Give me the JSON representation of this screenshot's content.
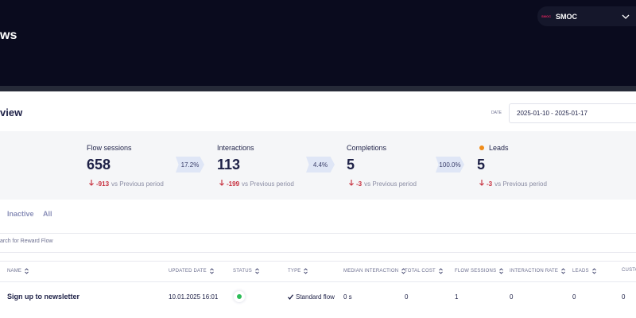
{
  "header": {
    "title": "ws",
    "account": {
      "logo": "SMOC",
      "name": "SMOC"
    }
  },
  "overview": {
    "title": "view",
    "date_label": "DATE",
    "date_range": "2025-01-10 - 2025-01-17"
  },
  "stats": [
    {
      "label": "Flow sessions",
      "value": "658",
      "change": "17.2%",
      "delta": "-913",
      "delta_suffix": "vs Previous period"
    },
    {
      "label": "Interactions",
      "value": "113",
      "change": "4.4%",
      "delta": "-199",
      "delta_suffix": "vs Previous period"
    },
    {
      "label": "Completions",
      "value": "5",
      "change": "100.0%",
      "delta": "-3",
      "delta_suffix": "vs Previous period"
    },
    {
      "label": "Leads",
      "value": "5",
      "delta": "-3",
      "delta_suffix": "vs Previous period"
    }
  ],
  "tabs": [
    "Inactive",
    "All"
  ],
  "search": {
    "placeholder": "arch for Reward Flow"
  },
  "table": {
    "columns": [
      "NAME",
      "UPDATED DATE",
      "STATUS",
      "TYPE",
      "MEDIAN INTERACTION",
      "TOTAL COST",
      "FLOW SESSIONS",
      "INTERACTION RATE",
      "LEADS",
      "CUSTO"
    ],
    "rows": [
      {
        "name": "Sign up to newsletter",
        "updated_date": "10.01.2025 16:01",
        "type": "Standard flow",
        "median_interaction": "0 s",
        "total_cost": "0",
        "flow_sessions": "1",
        "interaction_rate": "0",
        "leads": "0",
        "custom": "0"
      }
    ]
  }
}
